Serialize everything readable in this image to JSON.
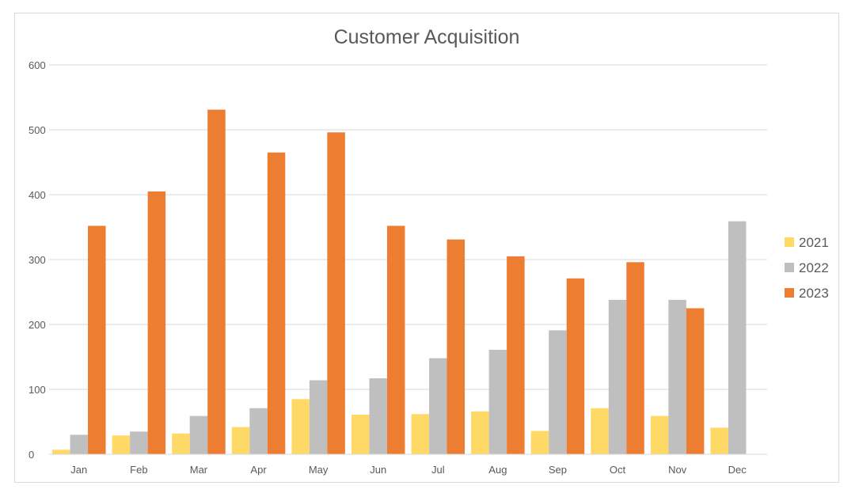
{
  "chart_data": {
    "type": "bar",
    "title": "Customer Acquisition",
    "xlabel": "",
    "ylabel": "",
    "ylim": [
      0,
      600
    ],
    "yticks": [
      0,
      100,
      200,
      300,
      400,
      500,
      600
    ],
    "grid": true,
    "legend_position": "right",
    "categories": [
      "Jan",
      "Feb",
      "Mar",
      "Apr",
      "May",
      "Jun",
      "Jul",
      "Aug",
      "Sep",
      "Oct",
      "Nov",
      "Dec"
    ],
    "series": [
      {
        "name": "2021",
        "color": "#FFD966",
        "values": [
          7,
          29,
          32,
          42,
          85,
          61,
          62,
          66,
          36,
          71,
          59,
          41
        ]
      },
      {
        "name": "2022",
        "color": "#BFBFBF",
        "values": [
          30,
          35,
          59,
          71,
          114,
          117,
          148,
          161,
          191,
          238,
          238,
          359
        ]
      },
      {
        "name": "2023",
        "color": "#ED7D31",
        "values": [
          352,
          405,
          531,
          465,
          496,
          352,
          331,
          305,
          271,
          296,
          225,
          null
        ]
      }
    ]
  }
}
